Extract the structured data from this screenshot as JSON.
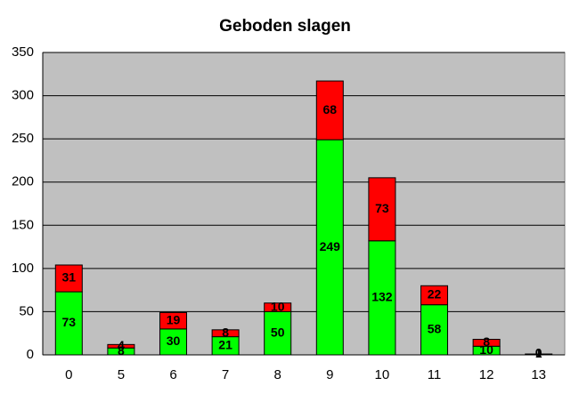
{
  "chart_data": {
    "type": "stacked_bar",
    "title": "Geboden slagen",
    "categories": [
      "0",
      "5",
      "6",
      "7",
      "8",
      "9",
      "10",
      "11",
      "12",
      "13"
    ],
    "series": [
      {
        "color": "#00ff00",
        "values": [
          73,
          8,
          30,
          21,
          50,
          249,
          132,
          58,
          10,
          1
        ]
      },
      {
        "color": "#ff0000",
        "values": [
          31,
          4,
          19,
          8,
          10,
          68,
          73,
          22,
          8,
          0
        ]
      }
    ],
    "ylim": [
      0,
      350
    ],
    "yticks": [
      0,
      50,
      100,
      150,
      200,
      250,
      300,
      350
    ],
    "grid": true
  }
}
